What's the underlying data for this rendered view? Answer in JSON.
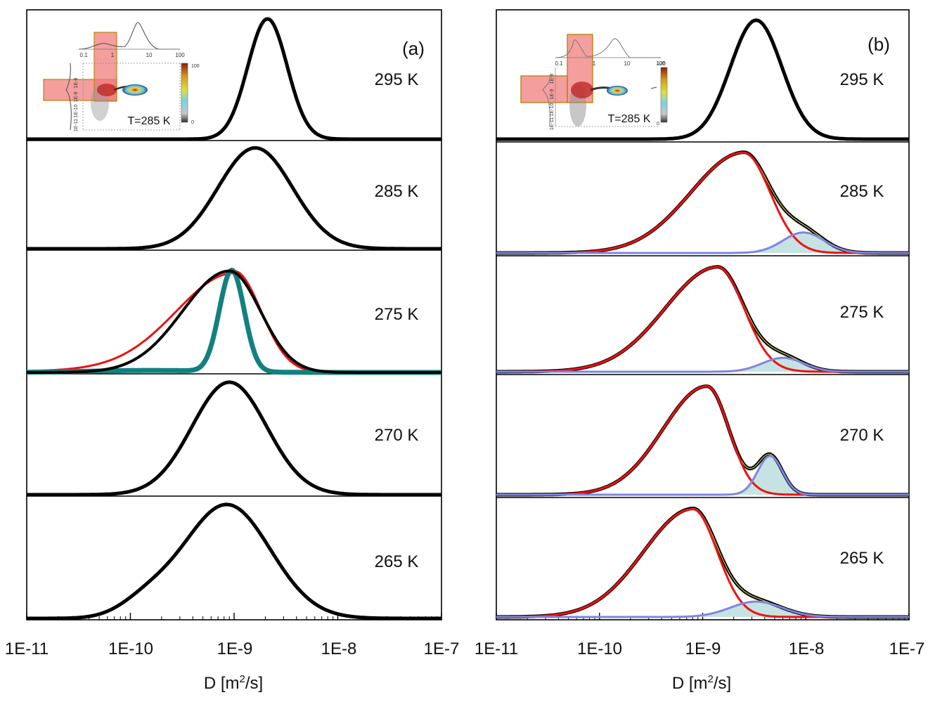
{
  "colors": {
    "measured": "#000000",
    "fit_slow": "#ee1111",
    "fit_fast": "#7f86e0",
    "fit_fast_fill": "#b3d8d8",
    "fit_sum": "#e8e860",
    "teal": "#138080",
    "inset_highlight": "#f07878",
    "inset_border": "#b8860b"
  },
  "chart_data": [
    {
      "type": "line",
      "panel_label": "(a)",
      "xlabel": "D [m2/s]",
      "xlabel_text": "D [m",
      "xlabel_sup": "2",
      "xlabel_tail": "/s]",
      "xscale": "log",
      "xlim": [
        1e-11,
        1e-07
      ],
      "xticks": [
        "1E-11",
        "1E-10",
        "1E-9",
        "1E-8",
        "1E-7"
      ],
      "temperatures": [
        "295 K",
        "285 K",
        "275 K",
        "270 K",
        "265 K"
      ],
      "series": [
        {
          "name": "295 K",
          "peak_D": 2.1e-09,
          "width_decades": 0.19,
          "amplitude": 1.0
        },
        {
          "name": "285 K",
          "peak_D": 1.6e-09,
          "width_decades": 0.36,
          "amplitude": 1.0
        },
        {
          "name": "275 K",
          "peak_D": 9e-10,
          "width_decades": 0.36,
          "amplitude": 1.0
        },
        {
          "name": "275 K (red)",
          "peak_D": 1e-09,
          "width_decades": 0.45,
          "amplitude": 1.0
        },
        {
          "name": "275 K (teal)",
          "peak_D": 9.5e-10,
          "width_decades": 0.12,
          "amplitude": 1.0
        },
        {
          "name": "270 K",
          "peak_D": 9e-10,
          "width_decades": 0.36,
          "amplitude": 1.0
        },
        {
          "name": "265 K",
          "peak_D": 8.5e-10,
          "width_decades": 0.42,
          "amplitude": 1.0
        }
      ],
      "inset": {
        "label": "T=285 K",
        "top_ticks": [
          "0.1",
          "1",
          "10",
          "100"
        ],
        "colorbar_ticks": [
          "100",
          "0"
        ],
        "side_ticks": [
          "1E-8",
          "1E-9",
          "1E-10",
          "1E-11"
        ]
      }
    },
    {
      "type": "line",
      "panel_label": "(b)",
      "xlabel": "D [m2/s]",
      "xlabel_text": "D [m",
      "xlabel_sup": "2",
      "xlabel_tail": "/s]",
      "xscale": "log",
      "xlim": [
        1e-11,
        1e-07
      ],
      "xticks": [
        "1E-11",
        "1E-10",
        "1E-9",
        "1E-8",
        "1E-7"
      ],
      "temperatures": [
        "295 K",
        "285 K",
        "275 K",
        "270 K",
        "265 K"
      ],
      "series": [
        {
          "name": "295 K",
          "peak_D": 3.3e-09,
          "width_decades": 0.25,
          "amplitude": 1.0
        },
        {
          "name": "285 K slow",
          "peak_D": 2.5e-09,
          "width_decades": 0.3,
          "amplitude": 0.98
        },
        {
          "name": "285 K fast",
          "peak_D": 9.5e-09,
          "width_decades": 0.2,
          "amplitude": 0.2
        },
        {
          "name": "275 K slow",
          "peak_D": 1.4e-09,
          "width_decades": 0.3,
          "amplitude": 0.98
        },
        {
          "name": "275 K fast",
          "peak_D": 6e-09,
          "width_decades": 0.2,
          "amplitude": 0.13
        },
        {
          "name": "270 K slow",
          "peak_D": 1.1e-09,
          "width_decades": 0.25,
          "amplitude": 0.98
        },
        {
          "name": "270 K fast",
          "peak_D": 4.5e-09,
          "width_decades": 0.12,
          "amplitude": 0.35
        },
        {
          "name": "265 K slow",
          "peak_D": 8e-10,
          "width_decades": 0.28,
          "amplitude": 0.98
        },
        {
          "name": "265 K fast",
          "peak_D": 3.3e-09,
          "width_decades": 0.25,
          "amplitude": 0.14
        }
      ],
      "inset": {
        "label": "T=285 K",
        "top_ticks": [
          "0.1",
          "1",
          "10",
          "100"
        ],
        "colorbar_ticks": [
          "100",
          "0"
        ],
        "side_ticks": [
          "1E-8",
          "1E-9",
          "1E-10",
          "1E-11"
        ]
      }
    }
  ]
}
